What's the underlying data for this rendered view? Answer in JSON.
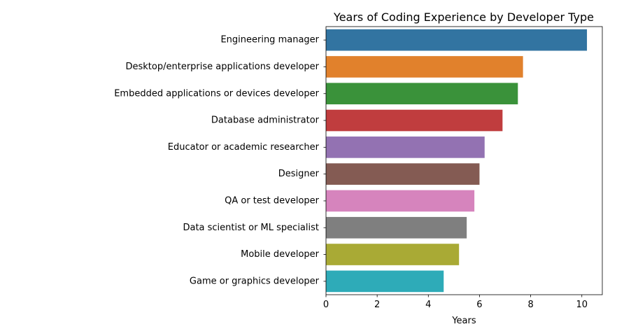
{
  "chart_data": {
    "type": "bar",
    "orientation": "horizontal",
    "title": "Years of Coding Experience by Developer Type",
    "xlabel": "Years",
    "ylabel": "",
    "xlim": [
      0,
      10.8
    ],
    "xticks": [
      0,
      2,
      4,
      6,
      8,
      10
    ],
    "grid": false,
    "legend": "none",
    "categories": [
      "Engineering manager",
      "Desktop/enterprise applications developer",
      "Embedded applications or devices developer",
      "Database administrator",
      "Educator or academic researcher",
      "Designer",
      "QA or test developer",
      "Data scientist or ML specialist",
      "Mobile developer",
      "Game or graphics developer"
    ],
    "values": [
      10.2,
      7.7,
      7.5,
      6.9,
      6.2,
      6.0,
      5.8,
      5.5,
      5.2,
      4.6
    ],
    "colors": [
      "#3274a1",
      "#e1812c",
      "#3a923a",
      "#c03d3e",
      "#9372b2",
      "#845b53",
      "#d684bd",
      "#7f7f7f",
      "#a9aa35",
      "#2eabb8"
    ]
  }
}
